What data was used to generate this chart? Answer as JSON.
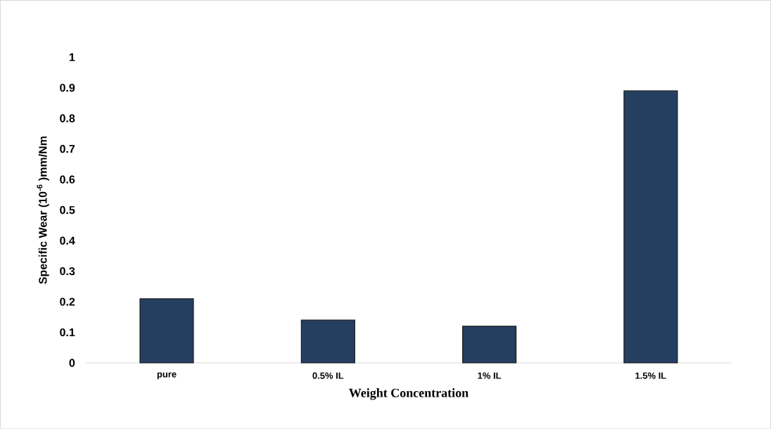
{
  "chart_data": {
    "type": "bar",
    "xlabel": "Weight Concentration",
    "ylabel": "Specific Wear (10$^{-6}$ )mm/Nm",
    "categories": [
      "pure",
      "0.5% IL",
      "1% IL",
      "1.5% IL"
    ],
    "values": [
      0.21,
      0.14,
      0.12,
      0.89
    ],
    "color": "#243f60",
    "ylim": [
      0,
      1
    ],
    "yticks": [
      0,
      0.1,
      0.2,
      0.3,
      0.4,
      0.5,
      0.6,
      0.7,
      0.8,
      0.9,
      1
    ]
  }
}
